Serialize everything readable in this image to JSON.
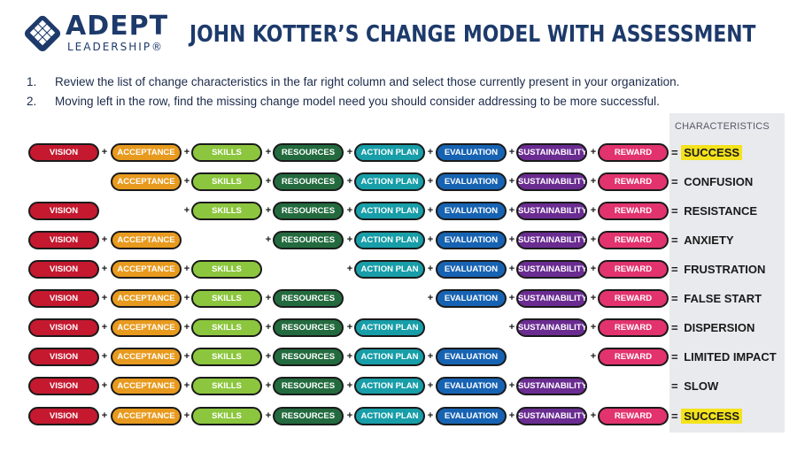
{
  "logo": {
    "brand": "ADEPT",
    "sub": "LEADERSHIP®"
  },
  "title": "JOHN KOTTER’S CHANGE MODEL WITH ASSESSMENT",
  "instructions": [
    {
      "num": "1.",
      "text": "Review the list of change characteristics in the far right column and select those currently present in your organization."
    },
    {
      "num": "2.",
      "text": "Moving left in the row, find the missing change model need you should consider addressing to be more successful."
    }
  ],
  "characteristics_header": "CHARACTERISTICS",
  "components": [
    {
      "label": "VISION",
      "color": "#c4192f"
    },
    {
      "label": "ACCEPTANCE",
      "color": "#e89a1e"
    },
    {
      "label": "SKILLS",
      "color": "#8cc63e"
    },
    {
      "label": "RESOURCES",
      "color": "#236b3e"
    },
    {
      "label": "ACTION PLAN",
      "color": "#179ea8"
    },
    {
      "label": "EVALUATION",
      "color": "#1763b3"
    },
    {
      "label": "SUSTAINABILITY",
      "color": "#6a2c91"
    },
    {
      "label": "REWARD",
      "color": "#e2336f"
    }
  ],
  "rows": [
    {
      "missing": -1,
      "result": "SUCCESS",
      "highlight": true
    },
    {
      "missing": 0,
      "result": "CONFUSION",
      "highlight": false
    },
    {
      "missing": 1,
      "result": "RESISTANCE",
      "highlight": false
    },
    {
      "missing": 2,
      "result": "ANXIETY",
      "highlight": false
    },
    {
      "missing": 3,
      "result": "FRUSTRATION",
      "highlight": false
    },
    {
      "missing": 4,
      "result": "FALSE START",
      "highlight": false
    },
    {
      "missing": 5,
      "result": "DISPERSION",
      "highlight": false
    },
    {
      "missing": 6,
      "result": "LIMITED IMPACT",
      "highlight": false
    },
    {
      "missing": 7,
      "result": "SLOW",
      "highlight": false
    },
    {
      "missing": -1,
      "result": "SUCCESS",
      "highlight": true
    }
  ],
  "plus_symbol": "+",
  "equals_symbol": "="
}
